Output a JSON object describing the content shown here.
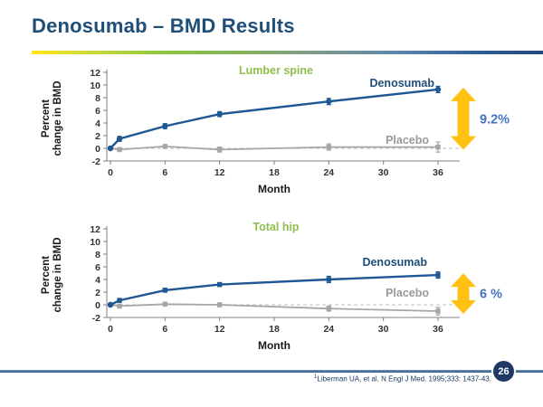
{
  "slide": {
    "title": "Denosumab – BMD Results",
    "page_number": "26",
    "footnote_marker": "1",
    "footnote_text": "Liberman UA, et al. N Engl J Med. 1995;333: 1437-43."
  },
  "colors": {
    "title_navy": "#1F4E79",
    "denosumab_line": "#1F5795",
    "placebo_line": "#A6A6A6",
    "chart_title_green": "#8FBE4D",
    "arrow_gold": "#FFC112",
    "annotation_blue": "#4472C4",
    "axis_gray": "#808080",
    "tick_text": "#333333",
    "badge_navy": "#1F3864",
    "zero_dash": "#C9C9C9"
  },
  "chart_data": [
    {
      "type": "line",
      "title": "Lumber spine",
      "xlabel": "Month",
      "ylabel_line1": "Percent",
      "ylabel_line2": "change in BMD",
      "xlim": [
        0,
        36
      ],
      "ylim": [
        -2,
        12
      ],
      "xticks": [
        0,
        6,
        12,
        18,
        24,
        30,
        36
      ],
      "yticks": [
        -2,
        0,
        2,
        4,
        6,
        8,
        10,
        12
      ],
      "x": [
        0,
        1,
        6,
        12,
        24,
        36
      ],
      "series": [
        {
          "name": "Denosumab",
          "color": "#1F5795",
          "marker": "circle",
          "values": [
            0,
            1.5,
            3.5,
            5.4,
            7.4,
            9.3
          ],
          "errors": [
            0,
            0.4,
            0.4,
            0.4,
            0.5,
            0.5
          ]
        },
        {
          "name": "Placebo",
          "color": "#A6A6A6",
          "marker": "square",
          "values": [
            0,
            -0.2,
            0.3,
            -0.2,
            0.2,
            0.2
          ],
          "errors": [
            0,
            0.3,
            0.3,
            0.4,
            0.5,
            0.8
          ]
        }
      ],
      "annotation": {
        "label": "9.2%"
      },
      "legend_position": "inline-labels",
      "grid": "zero-dashed-only"
    },
    {
      "type": "line",
      "title": "Total hip",
      "xlabel": "Month",
      "ylabel_line1": "Percent",
      "ylabel_line2": "change in BMD",
      "xlim": [
        0,
        36
      ],
      "ylim": [
        -2,
        12
      ],
      "xticks": [
        0,
        6,
        12,
        18,
        24,
        30,
        36
      ],
      "yticks": [
        -2,
        0,
        2,
        4,
        6,
        8,
        10,
        12
      ],
      "x": [
        0,
        1,
        6,
        12,
        24,
        36
      ],
      "series": [
        {
          "name": "Denosumab",
          "color": "#1F5795",
          "marker": "square",
          "values": [
            0,
            0.7,
            2.3,
            3.2,
            4.0,
            4.7
          ],
          "errors": [
            0,
            0.3,
            0.3,
            0.3,
            0.5,
            0.5
          ]
        },
        {
          "name": "Placebo",
          "color": "#A6A6A6",
          "marker": "square",
          "values": [
            0,
            -0.2,
            0.1,
            0.0,
            -0.6,
            -1.0
          ],
          "errors": [
            0,
            0.3,
            0.3,
            0.3,
            0.4,
            0.6
          ]
        }
      ],
      "annotation": {
        "label": "6 %"
      },
      "legend_position": "inline-labels",
      "grid": "zero-dashed-only"
    }
  ]
}
